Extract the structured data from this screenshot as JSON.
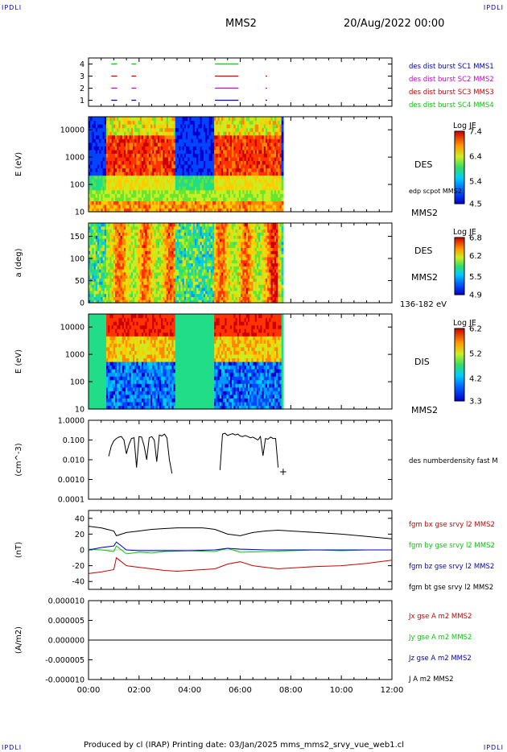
{
  "header": {
    "corner_tl": "IPDLI",
    "corner_tr": "IPDLI",
    "title": "MMS2",
    "date": "20/Aug/2022 00:00"
  },
  "footer": {
    "text": "Produced by cl (IRAP)   Printing date: 03/Jan/2025   mms_mms2_srvy_vue_web1.cl",
    "corner_bl": "IPDLI",
    "corner_br": "IPDLI"
  },
  "x_axis": {
    "ticks": [
      "00:00",
      "02:00",
      "04:00",
      "06:00",
      "08:00",
      "10:00",
      "12:00"
    ]
  },
  "colors": {
    "red": "#cc0000",
    "green": "#00cc00",
    "blue": "#0000cc",
    "magenta": "#cc00cc",
    "black": "#000000"
  },
  "chart_data": [
    {
      "type": "scatter",
      "panel": "burst-intervals",
      "y_ticks": [
        "4",
        "3",
        "2",
        "1"
      ],
      "ylim": [
        0.5,
        4.5
      ],
      "labels": [
        {
          "text": "des dist burst SC1 MMS1",
          "color": "#0000cc"
        },
        {
          "text": "des dist burst SC2 MMS2",
          "color": "#cc00cc"
        },
        {
          "text": "des dist burst SC3 MMS3",
          "color": "#cc0000"
        },
        {
          "text": "des dist burst SC4 MMS4",
          "color": "#00cc00"
        }
      ],
      "segments": [
        {
          "level": 4,
          "color": "#00cc00",
          "ranges": [
            [
              0.9,
              1.1
            ],
            [
              1.7,
              1.85
            ],
            [
              5.0,
              5.9
            ]
          ]
        },
        {
          "level": 3,
          "color": "#cc0000",
          "ranges": [
            [
              0.9,
              1.1
            ],
            [
              1.7,
              1.85
            ],
            [
              5.0,
              5.9
            ],
            [
              7.0,
              7.03
            ]
          ]
        },
        {
          "level": 2,
          "color": "#cc00cc",
          "ranges": [
            [
              0.9,
              1.1
            ],
            [
              1.7,
              1.85
            ],
            [
              5.0,
              5.9
            ],
            [
              7.0,
              7.03
            ]
          ]
        },
        {
          "level": 1,
          "color": "#0000cc",
          "ranges": [
            [
              0.9,
              1.1
            ],
            [
              1.7,
              1.85
            ],
            [
              5.0,
              5.9
            ],
            [
              7.0,
              7.03
            ]
          ]
        }
      ]
    },
    {
      "type": "heatmap",
      "panel": "des-energy",
      "ylabel": "E (eV)",
      "y_scale": "log",
      "y_ticks": [
        "10000",
        "1000",
        "100",
        "10"
      ],
      "ylim": [
        10,
        30000
      ],
      "x_data_end": 7.7,
      "right_labels": [
        "DES",
        "edp scpot MMS2",
        "MMS2"
      ],
      "colorbar": {
        "title": "Log JE",
        "ticks": [
          "7.4",
          "6.4",
          "5.4",
          "4.5"
        ],
        "min": 4.5,
        "max": 7.4
      }
    },
    {
      "type": "heatmap",
      "panel": "des-pitch-angle",
      "ylabel": "a (deg)",
      "y_ticks": [
        "150",
        "100",
        "50",
        "0"
      ],
      "ylim": [
        0,
        180
      ],
      "x_data_end": 7.7,
      "right_labels": [
        "DES",
        "MMS2",
        "136-182 eV"
      ],
      "colorbar": {
        "title": "Log JE",
        "ticks": [
          "6.8",
          "6.2",
          "5.5",
          "4.9"
        ],
        "min": 4.9,
        "max": 6.8
      }
    },
    {
      "type": "heatmap",
      "panel": "dis-energy",
      "ylabel": "E (eV)",
      "y_scale": "log",
      "y_ticks": [
        "10000",
        "1000",
        "100",
        "10"
      ],
      "ylim": [
        10,
        30000
      ],
      "x_data_end": 7.7,
      "right_labels": [
        "DIS",
        "MMS2"
      ],
      "colorbar": {
        "title": "Log JE",
        "ticks": [
          "6.2",
          "5.2",
          "4.2",
          "3.3"
        ],
        "min": 3.3,
        "max": 6.2
      }
    },
    {
      "type": "line",
      "panel": "number-density",
      "ylabel": "(cm^-3)",
      "y_scale": "log",
      "y_ticks": [
        "1.0000",
        "0.100",
        "0.010",
        "0.0010",
        "0.0001"
      ],
      "ylim": [
        0.0001,
        1.0
      ],
      "series_label": "des numberdensity fast M",
      "marker_label": "+",
      "series": [
        {
          "x": [
            0.8,
            0.9,
            1.0,
            1.1,
            1.2,
            1.3,
            1.4,
            1.5,
            1.6,
            1.7,
            1.8,
            1.9,
            2.0,
            2.1,
            2.2,
            2.3,
            2.4,
            2.5,
            2.6,
            2.7,
            2.8,
            2.9,
            3.0,
            3.1,
            3.2,
            3.3
          ],
          "y": [
            0.015,
            0.05,
            0.09,
            0.12,
            0.14,
            0.15,
            0.1,
            0.02,
            0.06,
            0.12,
            0.13,
            0.004,
            0.15,
            0.14,
            0.05,
            0.01,
            0.13,
            0.15,
            0.1,
            0.008,
            0.18,
            0.16,
            0.2,
            0.13,
            0.01,
            0.002
          ]
        },
        {
          "x": [
            5.2,
            5.3,
            5.4,
            5.5,
            5.6,
            5.7,
            5.8,
            5.9,
            6.0,
            6.1,
            6.2,
            6.3,
            6.4,
            6.5,
            6.6,
            6.7,
            6.8,
            6.9,
            7.0,
            7.1,
            7.2,
            7.3,
            7.4,
            7.5
          ],
          "y": [
            0.003,
            0.2,
            0.22,
            0.17,
            0.19,
            0.21,
            0.18,
            0.2,
            0.16,
            0.15,
            0.17,
            0.15,
            0.13,
            0.14,
            0.12,
            0.1,
            0.15,
            0.016,
            0.12,
            0.11,
            0.14,
            0.12,
            0.12,
            0.004
          ]
        }
      ],
      "marker": {
        "x": 7.7,
        "y": 0.0025
      }
    },
    {
      "type": "line",
      "panel": "magnetic-field",
      "ylabel": "(nT)",
      "y_ticks": [
        "40",
        "20",
        "0",
        "-20",
        "-40"
      ],
      "ylim": [
        -50,
        50
      ],
      "series": [
        {
          "name": "fgm bx gse srvy l2 MMS2",
          "color": "#cc0000",
          "x": [
            0,
            0.5,
            1.0,
            1.1,
            1.5,
            2.0,
            2.5,
            3.0,
            3.5,
            4.0,
            5.0,
            5.5,
            6.0,
            6.5,
            7.0,
            7.5,
            8.0,
            9.0,
            10.0,
            11.0,
            12.0
          ],
          "y": [
            -30,
            -28,
            -25,
            -10,
            -20,
            -22,
            -24,
            -26,
            -27,
            -26,
            -24,
            -18,
            -15,
            -20,
            -22,
            -24,
            -23,
            -21,
            -20,
            -17,
            -13
          ]
        },
        {
          "name": "fgm by gse srvy l2 MMS2",
          "color": "#00cc00",
          "x": [
            0,
            0.5,
            1.0,
            1.1,
            1.5,
            2.0,
            2.5,
            3.0,
            4.0,
            5.0,
            5.5,
            6.0,
            7.0,
            8.0,
            9.0,
            10.0,
            11.0,
            12.0
          ],
          "y": [
            1,
            0,
            -2,
            5,
            -5,
            -3,
            -4,
            -2,
            -1,
            -2,
            2,
            -3,
            -2,
            -1,
            0,
            -1,
            0,
            0
          ]
        },
        {
          "name": "fgm bz gse srvy l2 MMS2",
          "color": "#0000cc",
          "x": [
            0,
            0.5,
            1.0,
            1.1,
            1.5,
            2.0,
            3.0,
            4.0,
            5.0,
            5.5,
            6.0,
            7.0,
            8.0,
            9.0,
            10.0,
            11.0,
            12.0
          ],
          "y": [
            0,
            3,
            5,
            10,
            0,
            -1,
            -1,
            -1,
            0,
            2,
            1,
            0,
            0,
            0,
            0,
            0,
            0
          ]
        },
        {
          "name": "fgm bt gse srvy l2 MMS2",
          "color": "#000000",
          "x": [
            0,
            0.5,
            1.0,
            1.1,
            1.5,
            2.0,
            2.5,
            3.0,
            3.5,
            4.0,
            4.5,
            5.0,
            5.5,
            6.0,
            6.5,
            7.0,
            7.5,
            8.0,
            9.0,
            10.0,
            11.0,
            12.0
          ],
          "y": [
            30,
            28,
            24,
            18,
            22,
            24,
            26,
            27,
            28,
            28,
            28,
            26,
            20,
            18,
            22,
            24,
            25,
            24,
            22,
            20,
            17,
            14
          ]
        }
      ]
    },
    {
      "type": "line",
      "panel": "current-density",
      "ylabel": "(A/m2)",
      "y_ticks": [
        "0.000010",
        "0.000005",
        "0.000000",
        "-0.000005",
        "-0.000010"
      ],
      "ylim": [
        -1e-05,
        1e-05
      ],
      "series": [
        {
          "name": "Jx gse A m2 MMS2",
          "color": "#cc0000",
          "x": [
            0,
            12
          ],
          "y": [
            0,
            0
          ]
        },
        {
          "name": "Jy gse A m2 MMS2",
          "color": "#00cc00",
          "x": [
            0,
            12
          ],
          "y": [
            0,
            0
          ]
        },
        {
          "name": "Jz gse A m2 MMS2",
          "color": "#0000cc",
          "x": [
            0,
            12
          ],
          "y": [
            0,
            0
          ]
        },
        {
          "name": "J A m2 MMS2",
          "color": "#000000",
          "x": [
            0,
            12
          ],
          "y": [
            0,
            0
          ]
        }
      ]
    }
  ]
}
